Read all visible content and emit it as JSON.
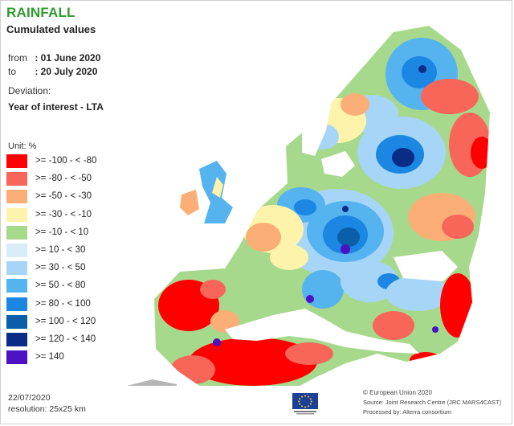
{
  "header": {
    "title": "RAINFALL",
    "subtitle": "Cumulated values"
  },
  "period": {
    "from_label": "from",
    "from_value": ": 01 June 2020",
    "to_label": "to",
    "to_value": ": 20 July 2020"
  },
  "deviation": {
    "label": "Deviation:",
    "value": "Year of interest - LTA"
  },
  "legend": {
    "unit": "Unit:  %",
    "items": [
      {
        "label": ">= -100 - < -80",
        "color": "#ff0000"
      },
      {
        "label": ">= -80 - < -50",
        "color": "#f8665a"
      },
      {
        "label": ">= -50 - < -30",
        "color": "#fcae77"
      },
      {
        "label": ">= -30 - < -10",
        "color": "#fdf3aa"
      },
      {
        "label": ">= -10 - < 10",
        "color": "#a7d98c"
      },
      {
        "label": ">= 10 - < 30",
        "color": "#d8ecfa"
      },
      {
        "label": ">= 30 - < 50",
        "color": "#a6d5f7"
      },
      {
        "label": ">= 50 - < 80",
        "color": "#55b4f0"
      },
      {
        "label": ">= 80 - < 100",
        "color": "#1b87e3"
      },
      {
        "label": ">= 100 - < 120",
        "color": "#0b5fa8"
      },
      {
        "label": ">= 120 - < 140",
        "color": "#0a2c86"
      },
      {
        "label": ">= 140",
        "color": "#4b11c2"
      }
    ]
  },
  "footer": {
    "date": "22/07/2020",
    "resolution": "resolution:  25x25 km",
    "copyright": "© European Union 2020",
    "source": "Source: Joint Research Centre (JRC MARS4CAST)",
    "processed": "Processed by: Alterra consortium"
  },
  "colors": {
    "title_green": "#2f9a2f",
    "sea": "#ffffff",
    "no_data": "#b5b5b5"
  }
}
